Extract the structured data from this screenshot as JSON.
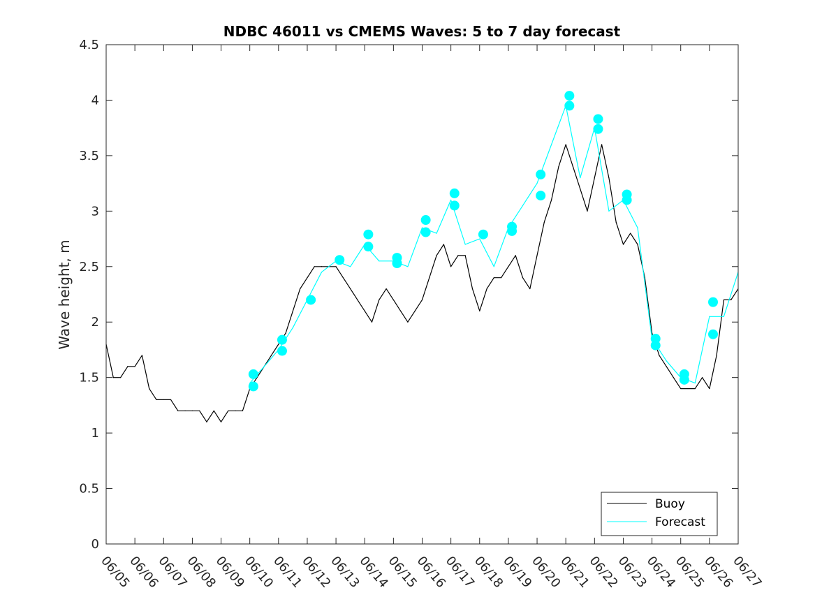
{
  "chart_data": {
    "type": "line",
    "title": "NDBC 46011 vs CMEMS Waves: 5 to 7 day forecast",
    "xlabel": "",
    "ylabel": "Wave height, m",
    "xlim": [
      "06/05",
      "06/27"
    ],
    "ylim": [
      0,
      4.5
    ],
    "x_ticks": [
      "06/05",
      "06/06",
      "06/07",
      "06/08",
      "06/09",
      "06/10",
      "06/11",
      "06/12",
      "06/13",
      "06/14",
      "06/15",
      "06/16",
      "06/17",
      "06/18",
      "06/19",
      "06/20",
      "06/21",
      "06/22",
      "06/23",
      "06/24",
      "06/25",
      "06/26",
      "06/27"
    ],
    "y_ticks": [
      0,
      0.5,
      1,
      1.5,
      2,
      2.5,
      3,
      3.5,
      4,
      4.5
    ],
    "y_tick_labels": [
      "0",
      "0.5",
      "1",
      "1.5",
      "2",
      "2.5",
      "3",
      "3.5",
      "4",
      "4.5"
    ],
    "grid": false,
    "legend_position": "bottom-right",
    "colors": {
      "buoy": "#000000",
      "forecast": "#00ffff",
      "axes": "#262626"
    },
    "series": [
      {
        "name": "Buoy",
        "color": "#000000",
        "x": [
          "06/05 00:00",
          "06/05 06:00",
          "06/05 12:00",
          "06/05 18:00",
          "06/06 00:00",
          "06/06 06:00",
          "06/06 12:00",
          "06/06 18:00",
          "06/07 00:00",
          "06/07 06:00",
          "06/07 12:00",
          "06/07 18:00",
          "06/08 00:00",
          "06/08 06:00",
          "06/08 12:00",
          "06/08 18:00",
          "06/09 00:00",
          "06/09 06:00",
          "06/09 12:00",
          "06/09 18:00",
          "06/10 00:00",
          "06/10 06:00",
          "06/10 12:00",
          "06/10 18:00",
          "06/11 00:00",
          "06/11 06:00",
          "06/11 12:00",
          "06/11 18:00",
          "06/12 00:00",
          "06/12 06:00",
          "06/12 12:00",
          "06/12 18:00",
          "06/13 00:00",
          "06/13 06:00",
          "06/13 12:00",
          "06/13 18:00",
          "06/14 00:00",
          "06/14 06:00",
          "06/14 12:00",
          "06/14 18:00",
          "06/15 00:00",
          "06/15 06:00",
          "06/15 12:00",
          "06/15 18:00",
          "06/16 00:00",
          "06/16 06:00",
          "06/16 12:00",
          "06/16 18:00",
          "06/17 00:00",
          "06/17 06:00",
          "06/17 12:00",
          "06/17 18:00",
          "06/18 00:00",
          "06/18 06:00",
          "06/18 12:00",
          "06/18 18:00",
          "06/19 00:00",
          "06/19 06:00",
          "06/19 12:00",
          "06/19 18:00",
          "06/20 00:00",
          "06/20 06:00",
          "06/20 12:00",
          "06/20 18:00",
          "06/21 00:00",
          "06/21 06:00",
          "06/21 12:00",
          "06/21 18:00",
          "06/22 00:00",
          "06/22 06:00",
          "06/22 12:00",
          "06/22 18:00",
          "06/23 00:00",
          "06/23 06:00",
          "06/23 12:00",
          "06/23 18:00",
          "06/24 00:00",
          "06/24 06:00",
          "06/24 12:00",
          "06/24 18:00",
          "06/25 00:00",
          "06/25 06:00",
          "06/25 12:00",
          "06/25 18:00",
          "06/26 00:00",
          "06/26 06:00",
          "06/26 12:00",
          "06/26 18:00",
          "06/27 00:00"
        ],
        "values": [
          1.8,
          1.5,
          1.5,
          1.6,
          1.6,
          1.7,
          1.4,
          1.3,
          1.3,
          1.3,
          1.2,
          1.2,
          1.2,
          1.2,
          1.1,
          1.2,
          1.1,
          1.2,
          1.2,
          1.2,
          1.4,
          1.5,
          1.6,
          1.7,
          1.8,
          1.9,
          2.1,
          2.3,
          2.4,
          2.5,
          2.5,
          2.5,
          2.5,
          2.4,
          2.3,
          2.2,
          2.1,
          2.0,
          2.2,
          2.3,
          2.2,
          2.1,
          2.0,
          2.1,
          2.2,
          2.4,
          2.6,
          2.7,
          2.5,
          2.6,
          2.6,
          2.3,
          2.1,
          2.3,
          2.4,
          2.4,
          2.5,
          2.6,
          2.4,
          2.3,
          2.6,
          2.9,
          3.1,
          3.4,
          3.6,
          3.4,
          3.2,
          3.0,
          3.3,
          3.6,
          3.3,
          2.9,
          2.7,
          2.8,
          2.7,
          2.4,
          1.9,
          1.7,
          1.6,
          1.5,
          1.4,
          1.4,
          1.4,
          1.5,
          1.4,
          1.7,
          2.2,
          2.2,
          2.3
        ]
      },
      {
        "name": "Forecast",
        "color": "#00ffff",
        "x": [
          "06/10 00:00",
          "06/10 12:00",
          "06/11 00:00",
          "06/11 12:00",
          "06/12 00:00",
          "06/12 12:00",
          "06/13 00:00",
          "06/13 12:00",
          "06/14 00:00",
          "06/14 12:00",
          "06/15 00:00",
          "06/15 12:00",
          "06/16 00:00",
          "06/16 12:00",
          "06/17 00:00",
          "06/17 12:00",
          "06/18 00:00",
          "06/18 12:00",
          "06/19 00:00",
          "06/19 12:00",
          "06/20 00:00",
          "06/20 12:00",
          "06/21 00:00",
          "06/21 12:00",
          "06/22 00:00",
          "06/22 12:00",
          "06/23 00:00",
          "06/23 12:00",
          "06/24 00:00",
          "06/24 12:00",
          "06/25 00:00",
          "06/25 12:00",
          "06/26 00:00",
          "06/26 12:00",
          "06/27 00:00"
        ],
        "values": [
          1.45,
          1.6,
          1.75,
          1.95,
          2.2,
          2.45,
          2.55,
          2.5,
          2.7,
          2.55,
          2.55,
          2.5,
          2.85,
          2.8,
          3.1,
          2.7,
          2.75,
          2.5,
          2.85,
          3.05,
          3.25,
          3.6,
          3.95,
          3.3,
          3.75,
          3.0,
          3.1,
          2.85,
          1.85,
          1.65,
          1.5,
          1.45,
          2.05,
          2.05,
          2.45
        ]
      }
    ],
    "markers": {
      "name": "Forecast",
      "x": [
        "06/10 03:00",
        "06/10 03:00",
        "06/11 03:00",
        "06/11 03:00",
        "06/12 03:00",
        "06/13 03:00",
        "06/14 03:00",
        "06/14 03:00",
        "06/15 03:00",
        "06/15 03:00",
        "06/16 03:00",
        "06/16 03:00",
        "06/17 03:00",
        "06/17 03:00",
        "06/18 03:00",
        "06/19 03:00",
        "06/19 03:00",
        "06/20 03:00",
        "06/20 03:00",
        "06/21 03:00",
        "06/21 03:00",
        "06/22 03:00",
        "06/22 03:00",
        "06/23 03:00",
        "06/23 03:00",
        "06/24 03:00",
        "06/24 03:00",
        "06/25 03:00",
        "06/25 03:00",
        "06/26 03:00",
        "06/26 03:00"
      ],
      "values": [
        1.42,
        1.53,
        1.74,
        1.84,
        2.2,
        2.56,
        2.68,
        2.79,
        2.53,
        2.58,
        2.81,
        2.92,
        3.05,
        3.16,
        2.79,
        2.82,
        2.86,
        3.14,
        3.33,
        3.95,
        4.04,
        3.74,
        3.83,
        3.1,
        3.15,
        1.79,
        1.85,
        1.48,
        1.53,
        1.89,
        2.18
      ]
    }
  },
  "legend": {
    "items": [
      "Buoy",
      "Forecast"
    ]
  }
}
